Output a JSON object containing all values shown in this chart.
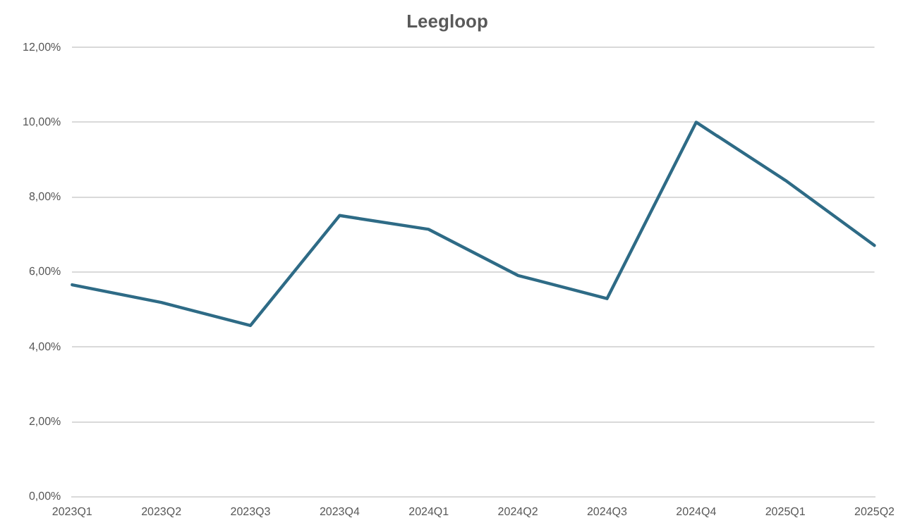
{
  "chart_data": {
    "type": "line",
    "title": "Leegloop",
    "categories": [
      "2023Q1",
      "2023Q2",
      "2023Q3",
      "2023Q4",
      "2024Q1",
      "2024Q2",
      "2024Q3",
      "2024Q4",
      "2025Q1",
      "2025Q2"
    ],
    "series": [
      {
        "color": "#2e6b86",
        "values": [
          5.66,
          5.19,
          4.57,
          7.51,
          7.14,
          5.91,
          5.29,
          10.0,
          8.45,
          6.71
        ]
      }
    ],
    "ylim": [
      0,
      12
    ],
    "yticks": [
      {
        "value": 0,
        "label": "0,00%"
      },
      {
        "value": 2,
        "label": "2,00%"
      },
      {
        "value": 4,
        "label": "4,00%"
      },
      {
        "value": 6,
        "label": "6,00%"
      },
      {
        "value": 8,
        "label": "8,00%"
      },
      {
        "value": 10,
        "label": "10,00%"
      },
      {
        "value": 12,
        "label": "12,00%"
      }
    ],
    "grid": "y",
    "legend": false,
    "marker": "none",
    "line_style": "solid"
  }
}
